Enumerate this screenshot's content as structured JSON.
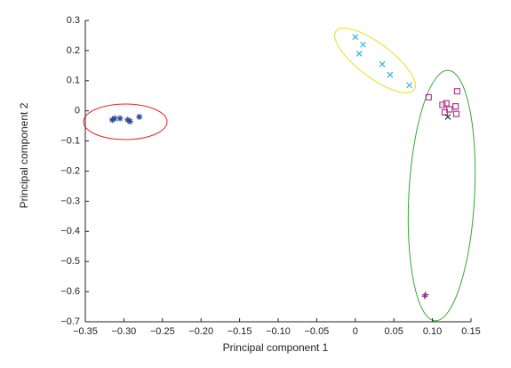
{
  "chart_data": {
    "type": "scatter",
    "xlabel": "Principal component 1",
    "ylabel": "Principal component 2",
    "xlim": [
      -0.35,
      0.15
    ],
    "ylim": [
      -0.7,
      0.3
    ],
    "xticks": [
      {
        "value": -0.35,
        "label": "−0.35"
      },
      {
        "value": -0.3,
        "label": "−0.30"
      },
      {
        "value": -0.25,
        "label": "−0.25"
      },
      {
        "value": -0.2,
        "label": "−0.20"
      },
      {
        "value": -0.15,
        "label": "−0.15"
      },
      {
        "value": -0.1,
        "label": "−0.10"
      },
      {
        "value": -0.05,
        "label": "−0.05"
      },
      0,
      0.05,
      {
        "value": 0.1,
        "label": "0.10"
      },
      0.15
    ],
    "yticks": [
      {
        "value": -0.7,
        "label": "−0.7"
      },
      {
        "value": -0.6,
        "label": "−0.6"
      },
      {
        "value": -0.5,
        "label": "−0.5"
      },
      {
        "value": -0.4,
        "label": "−0.4"
      },
      {
        "value": -0.3,
        "label": "−0.3"
      },
      {
        "value": -0.2,
        "label": "−0.2"
      },
      {
        "value": -0.1,
        "label": "−0.1"
      },
      0,
      0.1,
      0.2,
      0.3
    ],
    "series": [
      {
        "color": "#2b4c94",
        "marker": "asterisk",
        "x": [
          -0.315,
          -0.312,
          -0.305,
          -0.295,
          -0.292,
          -0.28
        ],
        "values": [
          -0.03,
          -0.025,
          -0.025,
          -0.03,
          -0.035,
          -0.02
        ]
      },
      {
        "color": "#2fb4d9",
        "marker": "x",
        "x": [
          0.0,
          0.005,
          0.01,
          0.035,
          0.045,
          0.07
        ],
        "values": [
          0.245,
          0.19,
          0.22,
          0.155,
          0.12,
          0.085
        ]
      },
      {
        "color": "#b23a8c",
        "marker": "square",
        "x": [
          0.095,
          0.113,
          0.118,
          0.122,
          0.13,
          0.131,
          0.132,
          0.116
        ],
        "values": [
          0.045,
          0.02,
          0.025,
          0.005,
          0.015,
          -0.01,
          0.065,
          -0.005
        ]
      },
      {
        "color": "#333333",
        "marker": "x",
        "x": [
          0.12
        ],
        "values": [
          -0.02
        ]
      },
      {
        "color": "#7a2f7a",
        "marker": "plus",
        "x": [
          0.09,
          0.091
        ],
        "values": [
          -0.615,
          -0.61
        ]
      }
    ]
  }
}
